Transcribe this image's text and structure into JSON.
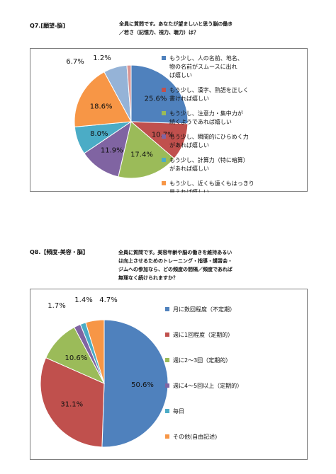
{
  "sections": [
    {
      "label": "Q7.[願望-脳]",
      "question": "全員に質問です。あなたが望ましいと思う脳の働き\n／若さ（記憶力、視力、聴力）は？"
    },
    {
      "label": "Q8.【頻度-美容・脳】",
      "question": "全員に質問です。美容年齢や脳の働きを維持あるい\nは向上させるためのトレーニング・指導・講習会・\nジムへの参加なら、どの頻度の間隔／頻度であれば\n無理なく続けられますか？"
    }
  ],
  "chart_data": [
    {
      "type": "pie",
      "slices": [
        {
          "label": "もう少し、人の名前、地名、物の名前がスムースに出れば嬉しい",
          "value": 25.6,
          "value_label": "25.6%",
          "color": "#4F81BD"
        },
        {
          "label": "もう少し、漢字、熟語を正しく書ければ嬉しい",
          "value": 10.7,
          "value_label": "10.7%",
          "color": "#C0504D"
        },
        {
          "label": "もう少し、注意力・集中力が続くようであれば嬉しい",
          "value": 17.4,
          "value_label": "17.4%",
          "color": "#9BBB59"
        },
        {
          "label": "もう少し、瞬間的にひらめく力があれば嬉しい",
          "value": 11.9,
          "value_label": "11.9%",
          "color": "#8064A2"
        },
        {
          "label": "もう少し、計算力（特に暗算）があれば嬉しい",
          "value": 8.0,
          "value_label": "8.0%",
          "color": "#4BACC6"
        },
        {
          "label": "もう少し、近くも遠くもはっきり見えれば嬉しい",
          "value": 18.6,
          "value_label": "18.6%",
          "color": "#F79646"
        },
        {
          "label": "",
          "value": 6.7,
          "value_label": "6.7%",
          "color": "#95B3D7"
        },
        {
          "label": "",
          "value": 1.2,
          "value_label": "1.2%",
          "color": "#D99694"
        }
      ],
      "legend": [
        {
          "lines": [
            "もう少し、人の名前、地名、",
            "物の名前がスムースに出れ",
            "ば嬉しい"
          ],
          "color": "#4F81BD"
        },
        {
          "lines": [
            "もう少し、漢字、熟語を正しく",
            "書ければ嬉しい"
          ],
          "color": "#C0504D"
        },
        {
          "lines": [
            "もう少し、注意力・集中力が",
            "続くようであれば嬉しい"
          ],
          "color": "#9BBB59"
        },
        {
          "lines": [
            "もう少し、瞬間的にひらめく力",
            "があれば嬉しい"
          ],
          "color": "#8064A2"
        },
        {
          "lines": [
            "もう少し、計算力（特に暗算）",
            "があれば嬉しい"
          ],
          "color": "#4BACC6"
        },
        {
          "lines": [
            "もう少し、近くも遠くもはっきり",
            "見えれば嬉しい"
          ],
          "color": "#F79646"
        }
      ],
      "legend_position": "right"
    },
    {
      "type": "pie",
      "slices": [
        {
          "label": "月に数回程度（不定期）",
          "value": 50.6,
          "value_label": "50.6%",
          "color": "#4F81BD"
        },
        {
          "label": "週に1回程度（定期的）",
          "value": 31.1,
          "value_label": "31.1%",
          "color": "#C0504D"
        },
        {
          "label": "週に2～3回（定期的）",
          "value": 10.6,
          "value_label": "10.6%",
          "color": "#9BBB59"
        },
        {
          "label": "週に4～5回以上（定期的）",
          "value": 1.7,
          "value_label": "1.7%",
          "color": "#8064A2"
        },
        {
          "label": "毎日",
          "value": 1.4,
          "value_label": "1.4%",
          "color": "#4BACC6"
        },
        {
          "label": "その他(自由記述)",
          "value": 4.7,
          "value_label": "4.7%",
          "color": "#F79646"
        }
      ],
      "legend": [
        {
          "lines": [
            "月に数回程度（不定期）"
          ],
          "color": "#4F81BD"
        },
        {
          "lines": [
            "週に1回程度（定期的）"
          ],
          "color": "#C0504D"
        },
        {
          "lines": [
            "週に2～3回（定期的）"
          ],
          "color": "#9BBB59"
        },
        {
          "lines": [
            "週に4～5回以上（定期的）"
          ],
          "color": "#8064A2"
        },
        {
          "lines": [
            "毎日"
          ],
          "color": "#4BACC6"
        },
        {
          "lines": [
            "その他(自由記述)"
          ],
          "color": "#F79646"
        }
      ],
      "legend_position": "right"
    }
  ]
}
